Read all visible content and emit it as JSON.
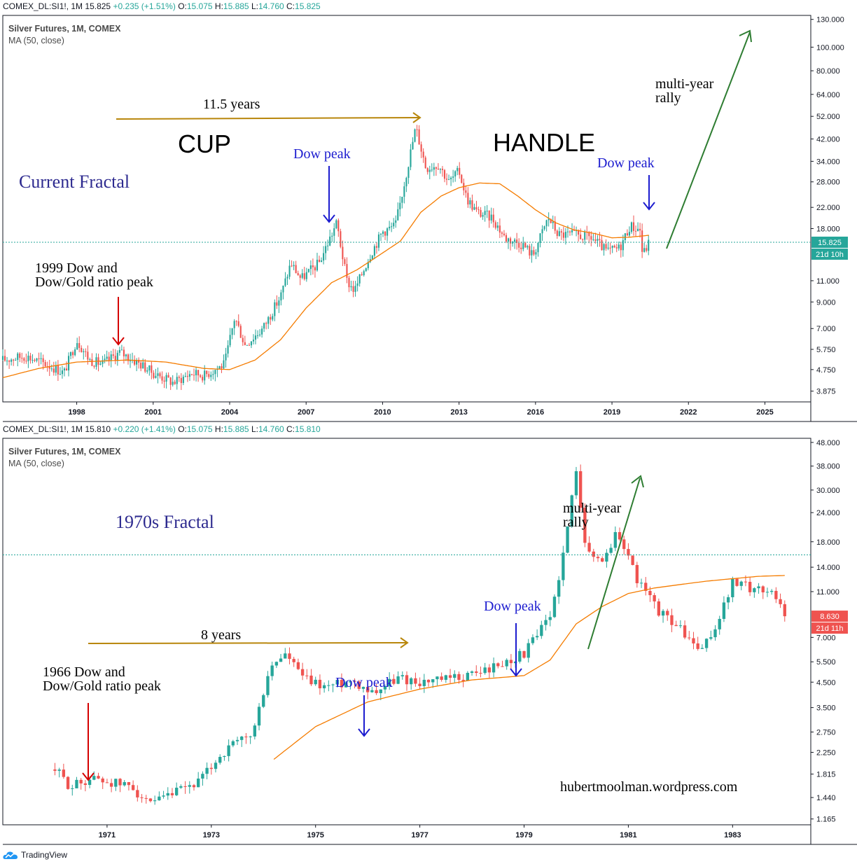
{
  "panels": [
    {
      "header": {
        "symbol": "COMEX_DL:SI1!, 1M",
        "last": "15.825",
        "change": "+0.235 (+1.51%)",
        "o_label": "O:",
        "o": "15.075",
        "h_label": "H:",
        "h": "15.885",
        "l_label": "L:",
        "l": "14.760",
        "c_label": "C:",
        "c": "15.825"
      },
      "legend": {
        "title": "Silver Futures, 1M, COMEX",
        "indicator": "MA (50, close)"
      },
      "price_label": "15.825",
      "countdown_label": "21d 10h",
      "annotations": {
        "fractal_title": "Current Fractal",
        "cup": "CUP",
        "handle": "HANDLE",
        "duration": "11.5 years",
        "dow_peak_1": "Dow peak",
        "dow_peak_2": "Dow peak",
        "ratio_peak_1": "1999 Dow and",
        "ratio_peak_2": "Dow/Gold ratio peak",
        "rally_1": "multi-year",
        "rally_2": "rally"
      }
    },
    {
      "header": {
        "symbol": "COMEX_DL:SI1!, 1M",
        "last": "15.810",
        "change": "+0.220 (+1.41%)",
        "o_label": "O:",
        "o": "15.075",
        "h_label": "H:",
        "h": "15.885",
        "l_label": "L:",
        "l": "14.760",
        "c_label": "C:",
        "c": "15.810"
      },
      "legend": {
        "title": "Silver Futures, 1M, COMEX",
        "indicator": "MA (50, close)"
      },
      "price_label": "8.630",
      "countdown_label": "21d 11h",
      "annotations": {
        "fractal_title": "1970s Fractal",
        "duration": "8 years",
        "dow_peak_1": "Dow peak",
        "dow_peak_2": "Dow peak",
        "ratio_peak_1": "1966 Dow and",
        "ratio_peak_2": "Dow/Gold ratio peak",
        "rally_1": "multi-year",
        "rally_2": "rally",
        "watermark": "hubertmoolman.wordpress.com"
      }
    }
  ],
  "footer": {
    "brand": "TradingView"
  },
  "colors": {
    "up": "#26a69a",
    "down": "#ef5350",
    "ma": "#f57c00",
    "arrow_gold": "#b8860b",
    "arrow_blue": "#1c1ccf",
    "arrow_red": "#d50000",
    "arrow_green": "#2e7d32",
    "title_color": "#2d2a8f"
  },
  "chart_data": [
    {
      "type": "candlestick",
      "title": "Silver Futures, 1M, COMEX",
      "scale": "log",
      "ylim": [
        3.5,
        135
      ],
      "xlim": [
        1995.1,
        2026.8
      ],
      "y_ticks": [
        "130.000",
        "100.000",
        "80.000",
        "64.000",
        "52.000",
        "42.000",
        "34.000",
        "28.000",
        "22.000",
        "18.000",
        "15.825",
        "11.000",
        "9.000",
        "7.000",
        "5.750",
        "4.750",
        "3.875"
      ],
      "y_tick_values": [
        130,
        100,
        80,
        64,
        52,
        42,
        34,
        28,
        22,
        18,
        15.825,
        11,
        9,
        7,
        5.75,
        4.75,
        3.875
      ],
      "x_ticks": [
        "1998",
        "2001",
        "2004",
        "2007",
        "2010",
        "2013",
        "2016",
        "2019",
        "2022",
        "2025"
      ],
      "x_tick_values": [
        1998,
        2001,
        2004,
        2007,
        2010,
        2013,
        2016,
        2019,
        2022,
        2025
      ],
      "price_path": [
        [
          1995.1,
          5.2
        ],
        [
          1996.0,
          5.4
        ],
        [
          1997.0,
          4.9
        ],
        [
          1997.5,
          4.6
        ],
        [
          1998.0,
          6.3
        ],
        [
          1998.5,
          5.2
        ],
        [
          1999.0,
          5.0
        ],
        [
          1999.7,
          5.6
        ],
        [
          2000.5,
          5.0
        ],
        [
          2001.0,
          4.6
        ],
        [
          2001.8,
          4.2
        ],
        [
          2002.5,
          4.6
        ],
        [
          2003.0,
          4.5
        ],
        [
          2003.8,
          5.0
        ],
        [
          2004.2,
          7.8
        ],
        [
          2004.6,
          6.0
        ],
        [
          2005.3,
          7.0
        ],
        [
          2006.0,
          9.5
        ],
        [
          2006.4,
          13.0
        ],
        [
          2006.8,
          11.2
        ],
        [
          2007.5,
          13.0
        ],
        [
          2008.2,
          19.0
        ],
        [
          2008.6,
          11.0
        ],
        [
          2008.9,
          10.0
        ],
        [
          2009.5,
          14.0
        ],
        [
          2010.0,
          17.5
        ],
        [
          2010.5,
          18.5
        ],
        [
          2010.8,
          26.0
        ],
        [
          2011.3,
          47.0
        ],
        [
          2011.7,
          32.0
        ],
        [
          2012.2,
          33.0
        ],
        [
          2012.6,
          28.0
        ],
        [
          2013.0,
          31.0
        ],
        [
          2013.3,
          24.0
        ],
        [
          2013.7,
          21.0
        ],
        [
          2014.3,
          20.0
        ],
        [
          2014.8,
          16.5
        ],
        [
          2015.5,
          15.5
        ],
        [
          2015.9,
          14.0
        ],
        [
          2016.5,
          20.0
        ],
        [
          2016.9,
          17.0
        ],
        [
          2017.5,
          17.0
        ],
        [
          2018.2,
          16.5
        ],
        [
          2018.8,
          14.5
        ],
        [
          2019.3,
          15.0
        ],
        [
          2019.7,
          18.5
        ],
        [
          2020.1,
          17.8
        ],
        [
          2020.2,
          14.0
        ],
        [
          2020.45,
          15.8
        ]
      ],
      "ma_path": [
        [
          1995.1,
          4.4
        ],
        [
          1996.5,
          4.8
        ],
        [
          1998.0,
          5.1
        ],
        [
          2000.0,
          5.2
        ],
        [
          2001.5,
          5.1
        ],
        [
          2003.0,
          4.8
        ],
        [
          2004.0,
          4.75
        ],
        [
          2005.0,
          5.2
        ],
        [
          2006.0,
          6.3
        ],
        [
          2007.0,
          8.5
        ],
        [
          2008.0,
          10.8
        ],
        [
          2009.0,
          12.2
        ],
        [
          2010.0,
          14.3
        ],
        [
          2010.7,
          16.0
        ],
        [
          2011.5,
          21.0
        ],
        [
          2012.3,
          24.5
        ],
        [
          2013.0,
          26.5
        ],
        [
          2013.8,
          27.7
        ],
        [
          2014.6,
          27.5
        ],
        [
          2015.3,
          24.5
        ],
        [
          2016.0,
          21.5
        ],
        [
          2016.8,
          19.0
        ],
        [
          2017.5,
          17.8
        ],
        [
          2018.3,
          17.2
        ],
        [
          2019.0,
          16.5
        ],
        [
          2019.7,
          16.6
        ],
        [
          2020.45,
          16.9
        ]
      ]
    },
    {
      "type": "candlestick",
      "title": "Silver Futures, 1M, COMEX",
      "scale": "log",
      "ylim": [
        1.1,
        50
      ],
      "xlim": [
        1969.0,
        1984.5
      ],
      "y_ticks": [
        "48.000",
        "38.000",
        "30.000",
        "24.000",
        "18.000",
        "14.000",
        "11.000",
        "8.630",
        "7.000",
        "5.500",
        "4.500",
        "3.500",
        "2.750",
        "2.250",
        "1.815",
        "1.440",
        "1.165"
      ],
      "y_tick_values": [
        48,
        38,
        30,
        24,
        18,
        14,
        11,
        8.63,
        7,
        5.5,
        4.5,
        3.5,
        2.75,
        2.25,
        1.815,
        1.44,
        1.165
      ],
      "x_ticks": [
        "1971",
        "1973",
        "1975",
        "1977",
        "1979",
        "1981",
        "1983"
      ],
      "x_tick_values": [
        1971,
        1973,
        1975,
        1977,
        1979,
        1981,
        1983
      ],
      "price_path": [
        [
          1970.0,
          1.9
        ],
        [
          1970.3,
          1.6
        ],
        [
          1970.7,
          1.75
        ],
        [
          1971.2,
          1.65
        ],
        [
          1971.5,
          1.6
        ],
        [
          1971.8,
          1.32
        ],
        [
          1972.3,
          1.5
        ],
        [
          1972.8,
          1.7
        ],
        [
          1973.1,
          2.1
        ],
        [
          1973.4,
          2.4
        ],
        [
          1973.8,
          2.7
        ],
        [
          1974.1,
          5.0
        ],
        [
          1974.4,
          6.0
        ],
        [
          1974.8,
          4.6
        ],
        [
          1975.2,
          4.3
        ],
        [
          1975.7,
          4.6
        ],
        [
          1976.1,
          4.1
        ],
        [
          1976.6,
          4.7
        ],
        [
          1977.0,
          4.5
        ],
        [
          1977.5,
          4.6
        ],
        [
          1977.9,
          4.8
        ],
        [
          1978.5,
          5.3
        ],
        [
          1979.0,
          6.0
        ],
        [
          1979.5,
          8.5
        ],
        [
          1979.8,
          18.0
        ],
        [
          1980.0,
          38.0
        ],
        [
          1980.2,
          16.0
        ],
        [
          1980.5,
          15.0
        ],
        [
          1980.8,
          20.0
        ],
        [
          1981.2,
          12.0
        ],
        [
          1981.6,
          9.0
        ],
        [
          1981.9,
          8.0
        ],
        [
          1982.4,
          6.0
        ],
        [
          1982.7,
          8.0
        ],
        [
          1983.0,
          12.0
        ],
        [
          1983.3,
          11.5
        ],
        [
          1983.8,
          11.0
        ],
        [
          1984.0,
          8.6
        ]
      ],
      "ma_path": [
        [
          1974.2,
          2.1
        ],
        [
          1975.0,
          2.9
        ],
        [
          1976.0,
          3.7
        ],
        [
          1977.0,
          4.2
        ],
        [
          1978.0,
          4.6
        ],
        [
          1979.0,
          4.8
        ],
        [
          1979.5,
          5.6
        ],
        [
          1980.0,
          8.0
        ],
        [
          1980.5,
          9.5
        ],
        [
          1981.0,
          10.8
        ],
        [
          1981.5,
          11.4
        ],
        [
          1982.0,
          11.8
        ],
        [
          1982.5,
          12.2
        ],
        [
          1983.0,
          12.5
        ],
        [
          1983.5,
          12.8
        ],
        [
          1984.0,
          12.9
        ]
      ]
    }
  ]
}
